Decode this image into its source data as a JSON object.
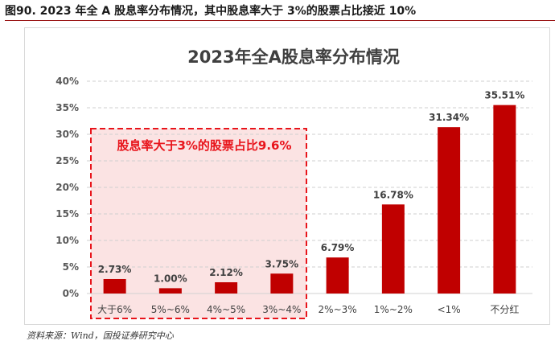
{
  "figure": {
    "caption": "图90. 2023 年全 A 股息率分布情况，其中股息率大于 3%的股票占比接近 10%",
    "source": "资料来源：Wind，国投证券研究中心"
  },
  "chart_data": {
    "type": "bar",
    "title": "2023年全A股息率分布情况",
    "categories": [
      "大于6%",
      "5%~6%",
      "4%~5%",
      "3%~4%",
      "2%~3%",
      "1%~2%",
      "<1%",
      "不分红"
    ],
    "values": [
      2.73,
      1.0,
      2.12,
      3.75,
      6.79,
      16.78,
      31.34,
      35.51
    ],
    "value_labels": [
      "2.73%",
      "1.00%",
      "2.12%",
      "3.75%",
      "6.79%",
      "16.78%",
      "31.34%",
      "35.51%"
    ],
    "y_ticks": [
      "0%",
      "5%",
      "10%",
      "15%",
      "20%",
      "25%",
      "30%",
      "35%",
      "40%"
    ],
    "ylim": [
      0,
      40
    ],
    "grid": true,
    "bar_color": "#c00000",
    "annotation": {
      "text": "股息率大于3%的股票占比9.6%",
      "covers_categories": [
        "大于6%",
        "5%~6%",
        "4%~5%",
        "3%~4%"
      ],
      "text_color": "#e8141b",
      "border_color": "#e8141b",
      "fill_color": "#fbe3e3"
    }
  }
}
